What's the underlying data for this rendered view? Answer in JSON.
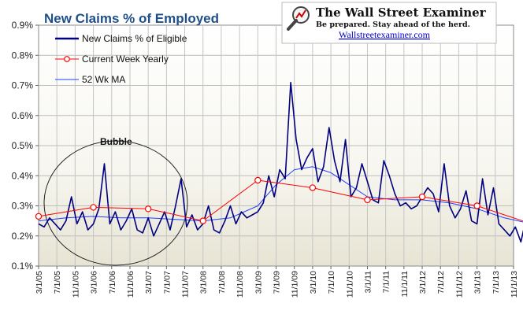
{
  "chart_data": {
    "type": "line",
    "title": "New Claims % of Employed",
    "xlabel": "",
    "ylabel": "",
    "ylim": [
      0.1,
      0.9
    ],
    "y_ticks": [
      "0.1%",
      "0.2%",
      "0.3%",
      "0.4%",
      "0.5%",
      "0.6%",
      "0.7%",
      "0.8%",
      "0.9%"
    ],
    "x_ticks": [
      "3/1/05",
      "7/1/05",
      "11/1/05",
      "3/1/06",
      "7/1/06",
      "11/1/06",
      "3/1/07",
      "7/1/07",
      "11/1/07",
      "3/1/08",
      "7/1/08",
      "11/1/08",
      "3/1/09",
      "7/1/09",
      "11/1/09",
      "3/1/10",
      "7/1/10",
      "11/1/10",
      "3/1/11",
      "7/1/11",
      "11/1/11",
      "3/1/12",
      "7/1/12",
      "11/1/12",
      "3/1/13",
      "7/1/13",
      "11/1/13"
    ],
    "grid": true,
    "legend_position": "top-left",
    "series": [
      {
        "name": "New Claims % of Eligible",
        "color": "#000080",
        "x": [
          0,
          0.3,
          0.6,
          0.9,
          1.2,
          1.5,
          1.8,
          2.1,
          2.4,
          2.7,
          3.0,
          3.3,
          3.6,
          3.9,
          4.2,
          4.5,
          4.8,
          5.1,
          5.4,
          5.7,
          6.0,
          6.3,
          6.6,
          6.9,
          7.2,
          7.5,
          7.8,
          8.1,
          8.4,
          8.7,
          9.0,
          9.3,
          9.6,
          9.9,
          10.2,
          10.5,
          10.8,
          11.1,
          11.4,
          11.7,
          12.0,
          12.3,
          12.6,
          12.9,
          13.2,
          13.5,
          13.8,
          14.1,
          14.4,
          14.7,
          15.0,
          15.3,
          15.6,
          15.9,
          16.2,
          16.5,
          16.8,
          17.1,
          17.4,
          17.7,
          18.0,
          18.3,
          18.6,
          18.9,
          19.2,
          19.5,
          19.8,
          20.1,
          20.4,
          20.7,
          21.0,
          21.3,
          21.6,
          21.9,
          22.2,
          22.5,
          22.8,
          23.1,
          23.4,
          23.7,
          24.0,
          24.3,
          24.6,
          24.9,
          25.2,
          25.5,
          25.8,
          26.1,
          26.4,
          26.7,
          27.0
        ],
        "values": [
          0.24,
          0.23,
          0.26,
          0.24,
          0.22,
          0.25,
          0.33,
          0.24,
          0.28,
          0.22,
          0.24,
          0.29,
          0.44,
          0.24,
          0.28,
          0.22,
          0.25,
          0.29,
          0.22,
          0.21,
          0.26,
          0.2,
          0.24,
          0.28,
          0.22,
          0.3,
          0.39,
          0.23,
          0.27,
          0.22,
          0.24,
          0.3,
          0.22,
          0.21,
          0.25,
          0.3,
          0.24,
          0.28,
          0.26,
          0.27,
          0.28,
          0.31,
          0.4,
          0.33,
          0.42,
          0.39,
          0.71,
          0.52,
          0.42,
          0.46,
          0.49,
          0.38,
          0.43,
          0.56,
          0.45,
          0.38,
          0.52,
          0.33,
          0.36,
          0.44,
          0.38,
          0.32,
          0.31,
          0.45,
          0.4,
          0.34,
          0.3,
          0.31,
          0.29,
          0.3,
          0.33,
          0.36,
          0.34,
          0.28,
          0.44,
          0.3,
          0.26,
          0.29,
          0.35,
          0.25,
          0.24,
          0.39,
          0.27,
          0.36,
          0.24,
          0.22,
          0.2,
          0.23,
          0.18,
          0.26,
          0.25
        ]
      },
      {
        "name": "Current Week Yearly",
        "color": "#ff0000",
        "x": [
          0,
          3,
          6,
          9,
          12,
          15,
          18,
          21,
          24,
          27
        ],
        "values": [
          0.265,
          0.295,
          0.29,
          0.25,
          0.385,
          0.36,
          0.32,
          0.33,
          0.3,
          0.24
        ]
      },
      {
        "name": "52 Wk MA",
        "color": "#1f3fff",
        "x": [
          0,
          1.5,
          3,
          4.5,
          6,
          7.5,
          9,
          10.5,
          12,
          13,
          14,
          15,
          16,
          17,
          18,
          19.5,
          21,
          22.5,
          24,
          25.5,
          27
        ],
        "values": [
          0.25,
          0.26,
          0.265,
          0.26,
          0.26,
          0.255,
          0.25,
          0.26,
          0.3,
          0.37,
          0.42,
          0.43,
          0.41,
          0.37,
          0.33,
          0.32,
          0.32,
          0.31,
          0.29,
          0.26,
          0.24
        ]
      }
    ],
    "annotations": [
      "Bubble"
    ]
  },
  "logo": {
    "title": "The Wall Street Examiner",
    "tagline": "Be prepared. Stay ahead of the herd.",
    "url": "Wallstreetexaminer.com"
  }
}
